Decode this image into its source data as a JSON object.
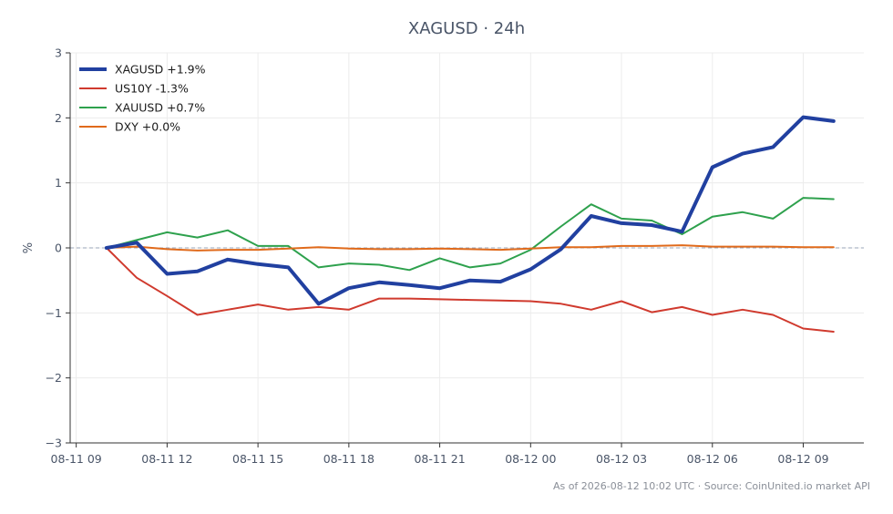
{
  "chart_data": {
    "type": "line",
    "title": "XAGUSD · 24h",
    "xlabel": "",
    "ylabel": "%",
    "ylim": [
      -3,
      3
    ],
    "y_ticks": [
      -3,
      -2,
      -1,
      0,
      1,
      2,
      3
    ],
    "y_tick_labels": [
      "−3",
      "−2",
      "−1",
      "0",
      "1",
      "2",
      "3"
    ],
    "x_ticks": [
      {
        "t": 0,
        "label": "08-11 09"
      },
      {
        "t": 3,
        "label": "08-11 12"
      },
      {
        "t": 6,
        "label": "08-11 15"
      },
      {
        "t": 9,
        "label": "08-11 18"
      },
      {
        "t": 12,
        "label": "08-11 21"
      },
      {
        "t": 15,
        "label": "08-12 00"
      },
      {
        "t": 18,
        "label": "08-12 03"
      },
      {
        "t": 21,
        "label": "08-12 06"
      },
      {
        "t": 24,
        "label": "08-12 09"
      }
    ],
    "x_range": [
      -0.2,
      26.0
    ],
    "x": [
      1,
      2,
      3,
      4,
      5,
      6,
      7,
      8,
      9,
      10,
      11,
      12,
      13,
      14,
      15,
      16,
      17,
      18,
      19,
      20,
      21,
      22,
      23,
      24,
      25
    ],
    "grid": true,
    "legend_position": "top-left",
    "series": [
      {
        "name": "XAGUSD +1.9%",
        "color": "#2140a0",
        "width": 4,
        "values": [
          0.0,
          0.08,
          -0.4,
          -0.36,
          -0.18,
          -0.25,
          -0.3,
          -0.86,
          -0.62,
          -0.53,
          -0.57,
          -0.62,
          -0.5,
          -0.52,
          -0.33,
          -0.02,
          0.49,
          0.38,
          0.35,
          0.25,
          1.24,
          1.45,
          1.55,
          2.01,
          1.95
        ]
      },
      {
        "name": "US10Y -1.3%",
        "color": "#d03a2e",
        "width": 2,
        "values": [
          0.0,
          -0.46,
          -0.74,
          -1.03,
          -0.95,
          -0.87,
          -0.95,
          -0.91,
          -0.95,
          -0.78,
          -0.78,
          -0.79,
          -0.8,
          -0.81,
          -0.82,
          -0.86,
          -0.95,
          -0.82,
          -0.99,
          -0.91,
          -1.03,
          -0.95,
          -1.03,
          -1.24,
          -1.29
        ]
      },
      {
        "name": "XAUUSD +0.7%",
        "color": "#2ea14d",
        "width": 2,
        "values": [
          0.0,
          0.12,
          0.24,
          0.16,
          0.27,
          0.03,
          0.03,
          -0.3,
          -0.24,
          -0.26,
          -0.34,
          -0.16,
          -0.3,
          -0.24,
          -0.03,
          0.33,
          0.67,
          0.45,
          0.42,
          0.21,
          0.48,
          0.55,
          0.45,
          0.77,
          0.75
        ]
      },
      {
        "name": "DXY +0.0%",
        "color": "#e06a1b",
        "width": 2,
        "values": [
          0.0,
          0.02,
          -0.02,
          -0.04,
          -0.03,
          -0.03,
          -0.01,
          0.01,
          -0.01,
          -0.02,
          -0.02,
          -0.01,
          -0.02,
          -0.03,
          -0.01,
          0.01,
          0.01,
          0.03,
          0.03,
          0.04,
          0.02,
          0.02,
          0.02,
          0.01,
          0.01
        ]
      }
    ],
    "zero_line": true
  },
  "footer": {
    "text": "As of 2026-08-12 10:02 UTC · Source: CoinUnited.io market API"
  },
  "colors": {
    "axis": "#333333",
    "grid": "#ececec",
    "zero_line": "#9aa4b8",
    "text": "#4a5568"
  }
}
